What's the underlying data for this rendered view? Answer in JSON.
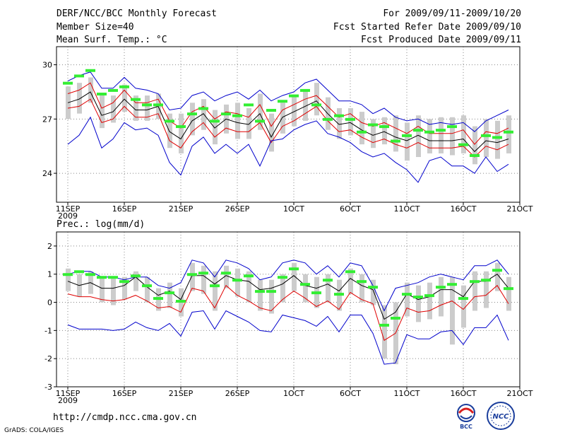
{
  "header": {
    "title": "DERF/NCC/BCC Monthly Forecast",
    "member_size": "Member Size=40",
    "variable_top": "Mean Surf. Temp.: °C",
    "period": "For 2009/09/11-2009/10/20",
    "started": "Fcst Started Refer Date 2009/09/10",
    "produced": "Fcst Produced Date 2009/09/11"
  },
  "footer": {
    "url": "http://cmdp.ncc.cma.gov.cn",
    "credit": "GrADS: COLA/IGES",
    "logo_left_label": "BCC",
    "logo_right_label": "NCC"
  },
  "colors": {
    "mean": "#000000",
    "spread": "#e00000",
    "extreme": "#0000cc",
    "box": "#cccccc",
    "marker": "#33ee33",
    "grid": "#888888"
  },
  "chart_data": [
    {
      "type": "line",
      "title": "Mean Surf. Temp.: °C",
      "x_ticks": [
        "11SEP",
        "16SEP",
        "21SEP",
        "26SEP",
        "1OCT",
        "6OCT",
        "11OCT",
        "16OCT",
        "21OCT"
      ],
      "x_year": "2009",
      "y_ticks": [
        "30",
        "27",
        "24"
      ],
      "ylim": [
        22.4,
        31.0
      ],
      "grid": true,
      "series": [
        {
          "name": "max",
          "color": "blue",
          "values": [
            29.1,
            29.4,
            29.6,
            28.7,
            28.7,
            29.3,
            28.7,
            28.6,
            28.4,
            27.5,
            27.6,
            28.3,
            28.5,
            28.0,
            28.3,
            28.5,
            28.1,
            28.6,
            28.0,
            28.3,
            28.5,
            29.0,
            29.2,
            28.6,
            28.0,
            28.0,
            27.8,
            27.3,
            27.6,
            27.1,
            26.9,
            27.0,
            26.7,
            26.8,
            26.7,
            26.8,
            26.3,
            26.9,
            27.2,
            27.5
          ]
        },
        {
          "name": "mean_plus_sd",
          "color": "red",
          "values": [
            28.4,
            28.6,
            29.0,
            27.6,
            27.9,
            28.6,
            27.9,
            27.9,
            28.1,
            26.9,
            26.5,
            27.4,
            27.7,
            27.0,
            27.4,
            27.3,
            27.1,
            27.8,
            26.6,
            27.5,
            27.8,
            28.1,
            28.3,
            27.7,
            27.1,
            27.3,
            26.8,
            26.6,
            26.8,
            26.5,
            26.2,
            26.6,
            26.2,
            26.2,
            26.2,
            26.4,
            25.6,
            26.3,
            26.2,
            26.5
          ]
        },
        {
          "name": "mean",
          "color": "black",
          "values": [
            27.9,
            28.1,
            28.5,
            27.2,
            27.4,
            28.1,
            27.5,
            27.5,
            27.7,
            26.3,
            25.9,
            26.9,
            27.3,
            26.5,
            27.0,
            26.8,
            26.7,
            27.3,
            26.0,
            27.1,
            27.4,
            27.7,
            28.0,
            27.3,
            26.7,
            26.8,
            26.4,
            26.1,
            26.3,
            26.0,
            25.8,
            26.1,
            25.8,
            25.8,
            25.8,
            25.9,
            25.2,
            25.8,
            25.7,
            25.9
          ]
        },
        {
          "name": "mean_minus_sd",
          "color": "red",
          "values": [
            27.6,
            27.7,
            28.1,
            26.8,
            27.0,
            27.7,
            27.1,
            27.1,
            27.3,
            25.8,
            25.4,
            26.3,
            26.8,
            26.0,
            26.5,
            26.3,
            26.3,
            26.8,
            25.7,
            26.6,
            26.9,
            27.3,
            27.7,
            26.9,
            26.3,
            26.4,
            26.0,
            25.7,
            25.9,
            25.6,
            25.4,
            25.7,
            25.4,
            25.4,
            25.4,
            25.5,
            24.9,
            25.5,
            25.3,
            25.6
          ]
        },
        {
          "name": "min",
          "color": "blue",
          "values": [
            25.6,
            26.1,
            27.1,
            25.4,
            25.9,
            26.8,
            26.4,
            26.5,
            26.1,
            24.6,
            23.9,
            25.5,
            26.0,
            25.1,
            25.6,
            25.1,
            25.6,
            24.4,
            25.8,
            25.9,
            26.4,
            26.7,
            26.9,
            26.2,
            26.0,
            25.7,
            25.2,
            24.9,
            25.1,
            24.6,
            24.2,
            23.5,
            24.7,
            24.9,
            24.4,
            24.4,
            24.0,
            24.9,
            24.1,
            24.5
          ]
        }
      ],
      "box": {
        "high": [
          28.8,
          29.0,
          29.3,
          28.4,
          28.3,
          28.9,
          28.3,
          28.3,
          28.4,
          27.3,
          27.3,
          27.9,
          28.1,
          27.5,
          27.8,
          27.9,
          27.6,
          28.4,
          27.3,
          27.9,
          28.3,
          28.6,
          29.0,
          28.2,
          27.6,
          27.6,
          27.4,
          27.0,
          27.1,
          27.2,
          26.8,
          27.2,
          27.0,
          27.1,
          27.1,
          27.2,
          26.6,
          27.0,
          26.9,
          27.2
        ],
        "low": [
          27.0,
          27.3,
          27.9,
          26.5,
          26.8,
          27.4,
          26.9,
          26.9,
          27.0,
          25.4,
          25.1,
          26.1,
          26.4,
          25.6,
          26.2,
          25.9,
          25.9,
          26.4,
          25.2,
          26.2,
          26.6,
          26.9,
          27.2,
          26.4,
          25.9,
          26.1,
          25.6,
          25.4,
          25.6,
          25.2,
          24.7,
          24.9,
          25.1,
          25.1,
          25.0,
          25.1,
          24.5,
          24.9,
          24.8,
          25.1
        ]
      },
      "markers": [
        29.0,
        29.4,
        29.7,
        28.4,
        28.6,
        28.8,
        28.1,
        27.8,
        27.8,
        26.9,
        26.6,
        27.3,
        27.6,
        26.9,
        27.3,
        27.2,
        27.8,
        26.9,
        27.5,
        28.0,
        28.3,
        28.6,
        27.8,
        27.0,
        27.2,
        27.0,
        26.3,
        26.7,
        26.6,
        25.8,
        26.1,
        26.4,
        26.3,
        26.4,
        26.6,
        25.6,
        25.0,
        26.1,
        26.0,
        26.3
      ]
    },
    {
      "type": "line",
      "title": "Prec.: log(mm/d)",
      "x_ticks": [
        "11SEP",
        "16SEP",
        "21SEP",
        "26SEP",
        "1OCT",
        "6OCT",
        "11OCT",
        "16OCT",
        "21OCT"
      ],
      "x_year": "2009",
      "y_ticks": [
        "2",
        "1",
        "0",
        "-1",
        "-2",
        "-3"
      ],
      "ylim": [
        -3.0,
        2.5
      ],
      "grid": true,
      "series": [
        {
          "name": "max",
          "color": "blue",
          "values": [
            1.0,
            1.1,
            1.1,
            0.9,
            0.9,
            0.8,
            0.9,
            0.9,
            0.6,
            0.5,
            0.7,
            1.5,
            1.4,
            0.9,
            1.5,
            1.4,
            1.2,
            0.8,
            0.9,
            1.4,
            1.5,
            1.4,
            1.0,
            1.3,
            0.9,
            1.4,
            1.3,
            0.6,
            -0.3,
            0.5,
            0.6,
            0.7,
            0.9,
            1.0,
            0.9,
            0.8,
            1.3,
            1.3,
            1.5,
            1.0
          ]
        },
        {
          "name": "mean_plus_sd",
          "color": "black",
          "values": [
            0.75,
            0.6,
            0.7,
            0.5,
            0.5,
            0.6,
            0.9,
            0.55,
            0.25,
            0.4,
            0.1,
            0.95,
            0.95,
            0.65,
            0.95,
            0.8,
            0.75,
            0.45,
            0.5,
            0.65,
            0.95,
            0.6,
            0.5,
            0.65,
            0.4,
            0.85,
            0.6,
            0.45,
            -0.6,
            -0.35,
            0.3,
            0.1,
            0.2,
            0.45,
            0.45,
            0.2,
            0.75,
            0.75,
            1.0,
            0.5
          ]
        },
        {
          "name": "mean",
          "color": "red",
          "values": [
            0.3,
            0.2,
            0.2,
            0.1,
            0.05,
            0.1,
            0.25,
            0.05,
            -0.2,
            -0.15,
            -0.35,
            0.5,
            0.4,
            -0.2,
            0.6,
            0.25,
            0.05,
            -0.2,
            -0.3,
            0.1,
            0.4,
            0.15,
            -0.15,
            0.05,
            -0.25,
            0.35,
            0.1,
            -0.05,
            -1.35,
            -1.1,
            -0.2,
            -0.35,
            -0.3,
            -0.1,
            0.05,
            -0.25,
            0.2,
            0.25,
            0.6,
            -0.05
          ]
        },
        {
          "name": "min",
          "color": "blue",
          "values": [
            -0.8,
            -0.95,
            -0.95,
            -0.95,
            -1.0,
            -0.95,
            -0.7,
            -0.9,
            -1.0,
            -0.75,
            -1.2,
            -0.35,
            -0.3,
            -0.95,
            -0.3,
            -0.5,
            -0.7,
            -1.0,
            -1.05,
            -0.45,
            -0.55,
            -0.65,
            -0.85,
            -0.5,
            -1.05,
            -0.45,
            -0.45,
            -1.1,
            -2.2,
            -2.15,
            -1.15,
            -1.3,
            -1.3,
            -1.05,
            -1.0,
            -1.5,
            -0.9,
            -0.9,
            -0.45,
            -1.35
          ]
        }
      ],
      "box": {
        "high": [
          1.2,
          1.0,
          1.1,
          0.9,
          0.9,
          0.9,
          1.1,
          0.9,
          0.5,
          0.7,
          0.5,
          1.4,
          1.3,
          1.1,
          1.3,
          1.2,
          1.1,
          0.8,
          0.8,
          1.0,
          1.4,
          1.0,
          0.9,
          1.0,
          0.8,
          1.2,
          1.0,
          0.8,
          -0.1,
          0.0,
          0.7,
          0.6,
          0.7,
          0.9,
          0.9,
          0.6,
          1.1,
          1.1,
          1.4,
          0.9
        ],
        "low": [
          0.4,
          0.2,
          0.3,
          0.0,
          -0.1,
          0.1,
          0.4,
          0.0,
          -0.3,
          -0.2,
          -0.5,
          0.4,
          0.3,
          -0.3,
          0.5,
          0.2,
          0.0,
          -0.3,
          -0.4,
          0.0,
          0.4,
          0.0,
          -0.2,
          0.0,
          -0.3,
          0.3,
          0.0,
          -0.1,
          -2.0,
          -2.2,
          -0.5,
          -0.7,
          -0.6,
          -0.5,
          -1.5,
          -0.9,
          -0.3,
          -0.2,
          0.4,
          -0.3
        ]
      },
      "markers": [
        1.0,
        1.1,
        1.0,
        0.9,
        0.9,
        0.75,
        0.95,
        0.6,
        0.15,
        0.35,
        0.05,
        1.0,
        1.05,
        0.6,
        1.05,
        0.8,
        0.95,
        0.4,
        0.4,
        0.9,
        1.2,
        0.65,
        0.35,
        0.8,
        0.3,
        1.1,
        0.75,
        0.55,
        -0.8,
        -0.55,
        0.3,
        0.2,
        0.25,
        0.55,
        0.65,
        0.15,
        0.75,
        0.8,
        1.15,
        0.5
      ]
    }
  ]
}
